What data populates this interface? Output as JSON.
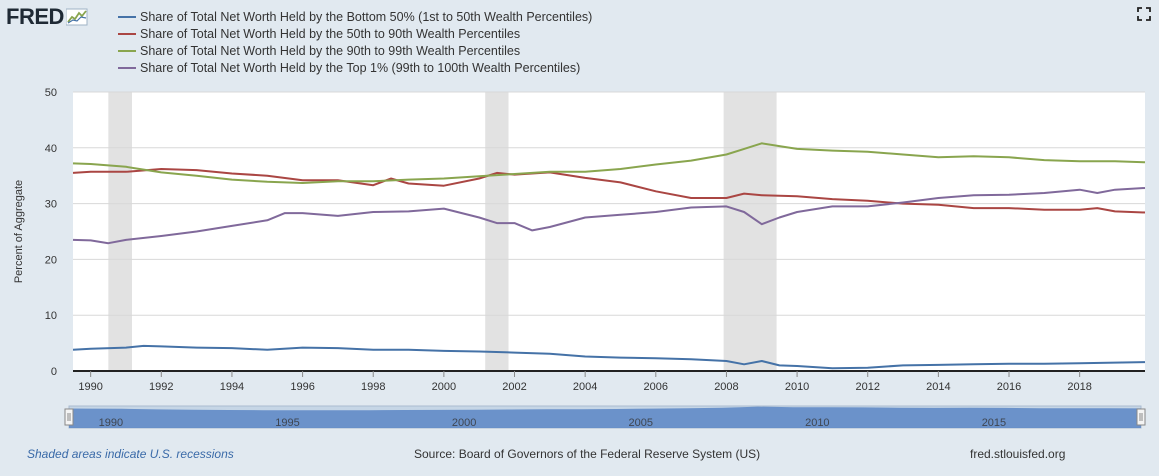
{
  "header": {
    "logo_text": "FRED",
    "logo_icon": "fred-graph-icon",
    "expand_icon": "expand-icon"
  },
  "footer": {
    "recession_note": "Shaded areas indicate U.S. recessions",
    "source": "Source: Board of Governors of the Federal Reserve System (US)",
    "site": "fred.stlouisfed.org"
  },
  "chart_data": {
    "type": "line",
    "title": "",
    "xlabel": "",
    "ylabel": "Percent of Aggregate",
    "xlim": [
      1989.5,
      2019.85
    ],
    "ylim": [
      0,
      50
    ],
    "yticks": [
      0,
      10,
      20,
      30,
      40,
      50
    ],
    "xticks": [
      1990,
      1992,
      1994,
      1996,
      1998,
      2000,
      2002,
      2004,
      2006,
      2008,
      2010,
      2012,
      2014,
      2016,
      2018
    ],
    "grid": "horizontal",
    "legend": "top-left",
    "recessions": [
      [
        1990.5,
        1991.17
      ],
      [
        2001.17,
        2001.83
      ],
      [
        2007.92,
        2009.42
      ]
    ],
    "navigator": {
      "ticks": [
        1990,
        1995,
        2000,
        2005,
        2010,
        2015
      ],
      "range": [
        1989.5,
        2019.85
      ]
    },
    "series": [
      {
        "name": "Share of Total Net Worth Held by the Bottom 50% (1st to 50th Wealth Percentiles)",
        "color": "#4572a7",
        "points": [
          [
            1989.5,
            3.8
          ],
          [
            1990,
            4.0
          ],
          [
            1991,
            4.2
          ],
          [
            1991.5,
            4.5
          ],
          [
            1992,
            4.4
          ],
          [
            1993,
            4.2
          ],
          [
            1994,
            4.1
          ],
          [
            1995,
            3.8
          ],
          [
            1996,
            4.2
          ],
          [
            1997,
            4.1
          ],
          [
            1998,
            3.8
          ],
          [
            1999,
            3.8
          ],
          [
            2000,
            3.6
          ],
          [
            2001,
            3.5
          ],
          [
            2002,
            3.3
          ],
          [
            2003,
            3.1
          ],
          [
            2004,
            2.6
          ],
          [
            2005,
            2.4
          ],
          [
            2006,
            2.3
          ],
          [
            2007,
            2.1
          ],
          [
            2008,
            1.8
          ],
          [
            2008.5,
            1.2
          ],
          [
            2009,
            1.8
          ],
          [
            2009.5,
            1.0
          ],
          [
            2010,
            0.9
          ],
          [
            2011,
            0.5
          ],
          [
            2012,
            0.6
          ],
          [
            2013,
            1.0
          ],
          [
            2014,
            1.1
          ],
          [
            2015,
            1.2
          ],
          [
            2016,
            1.3
          ],
          [
            2017,
            1.3
          ],
          [
            2018,
            1.4
          ],
          [
            2019,
            1.5
          ],
          [
            2019.85,
            1.6
          ]
        ]
      },
      {
        "name": "Share of Total Net Worth Held by the 50th to 90th Wealth Percentiles",
        "color": "#aa4643",
        "points": [
          [
            1989.5,
            35.5
          ],
          [
            1990,
            35.7
          ],
          [
            1991,
            35.7
          ],
          [
            1992,
            36.2
          ],
          [
            1993,
            36.0
          ],
          [
            1994,
            35.4
          ],
          [
            1995,
            35.0
          ],
          [
            1996,
            34.2
          ],
          [
            1997,
            34.2
          ],
          [
            1998,
            33.3
          ],
          [
            1998.5,
            34.5
          ],
          [
            1999,
            33.6
          ],
          [
            2000,
            33.2
          ],
          [
            2001,
            34.5
          ],
          [
            2001.5,
            35.5
          ],
          [
            2002,
            35.2
          ],
          [
            2003,
            35.6
          ],
          [
            2004,
            34.6
          ],
          [
            2005,
            33.8
          ],
          [
            2006,
            32.2
          ],
          [
            2007,
            31.0
          ],
          [
            2008,
            31.0
          ],
          [
            2008.5,
            31.8
          ],
          [
            2009,
            31.5
          ],
          [
            2010,
            31.3
          ],
          [
            2011,
            30.8
          ],
          [
            2012,
            30.5
          ],
          [
            2013,
            30.0
          ],
          [
            2014,
            29.8
          ],
          [
            2015,
            29.2
          ],
          [
            2016,
            29.2
          ],
          [
            2017,
            28.9
          ],
          [
            2018,
            28.9
          ],
          [
            2018.5,
            29.2
          ],
          [
            2019,
            28.6
          ],
          [
            2019.85,
            28.4
          ]
        ]
      },
      {
        "name": "Share of Total Net Worth Held by the 90th to 99th Wealth Percentiles",
        "color": "#89a54e",
        "points": [
          [
            1989.5,
            37.2
          ],
          [
            1990,
            37.1
          ],
          [
            1991,
            36.6
          ],
          [
            1992,
            35.6
          ],
          [
            1993,
            35.0
          ],
          [
            1994,
            34.3
          ],
          [
            1995,
            33.9
          ],
          [
            1996,
            33.7
          ],
          [
            1997,
            34.0
          ],
          [
            1998,
            34.0
          ],
          [
            1999,
            34.3
          ],
          [
            2000,
            34.5
          ],
          [
            2001,
            34.9
          ],
          [
            2002,
            35.3
          ],
          [
            2003,
            35.7
          ],
          [
            2004,
            35.7
          ],
          [
            2005,
            36.2
          ],
          [
            2006,
            37.0
          ],
          [
            2007,
            37.7
          ],
          [
            2008,
            38.8
          ],
          [
            2008.5,
            39.8
          ],
          [
            2009,
            40.8
          ],
          [
            2009.5,
            40.3
          ],
          [
            2010,
            39.8
          ],
          [
            2011,
            39.5
          ],
          [
            2012,
            39.3
          ],
          [
            2013,
            38.8
          ],
          [
            2014,
            38.3
          ],
          [
            2015,
            38.5
          ],
          [
            2016,
            38.3
          ],
          [
            2017,
            37.8
          ],
          [
            2018,
            37.6
          ],
          [
            2019,
            37.6
          ],
          [
            2019.85,
            37.4
          ]
        ]
      },
      {
        "name": "Share of Total Net Worth Held by the Top 1% (99th to 100th Wealth Percentiles)",
        "color": "#80699b",
        "points": [
          [
            1989.5,
            23.5
          ],
          [
            1990,
            23.4
          ],
          [
            1990.5,
            22.9
          ],
          [
            1991,
            23.5
          ],
          [
            1992,
            24.2
          ],
          [
            1993,
            25.0
          ],
          [
            1994,
            26.0
          ],
          [
            1995,
            27.0
          ],
          [
            1995.5,
            28.3
          ],
          [
            1996,
            28.3
          ],
          [
            1997,
            27.8
          ],
          [
            1998,
            28.5
          ],
          [
            1999,
            28.6
          ],
          [
            2000,
            29.1
          ],
          [
            2001,
            27.5
          ],
          [
            2001.5,
            26.5
          ],
          [
            2002,
            26.5
          ],
          [
            2002.5,
            25.2
          ],
          [
            2003,
            25.8
          ],
          [
            2004,
            27.5
          ],
          [
            2005,
            28.0
          ],
          [
            2006,
            28.5
          ],
          [
            2007,
            29.3
          ],
          [
            2008,
            29.5
          ],
          [
            2008.5,
            28.5
          ],
          [
            2009,
            26.3
          ],
          [
            2009.5,
            27.5
          ],
          [
            2010,
            28.5
          ],
          [
            2011,
            29.5
          ],
          [
            2012,
            29.5
          ],
          [
            2013,
            30.2
          ],
          [
            2014,
            31.0
          ],
          [
            2015,
            31.5
          ],
          [
            2016,
            31.6
          ],
          [
            2017,
            31.9
          ],
          [
            2018,
            32.5
          ],
          [
            2018.5,
            31.9
          ],
          [
            2019,
            32.5
          ],
          [
            2019.85,
            32.8
          ]
        ]
      }
    ]
  }
}
